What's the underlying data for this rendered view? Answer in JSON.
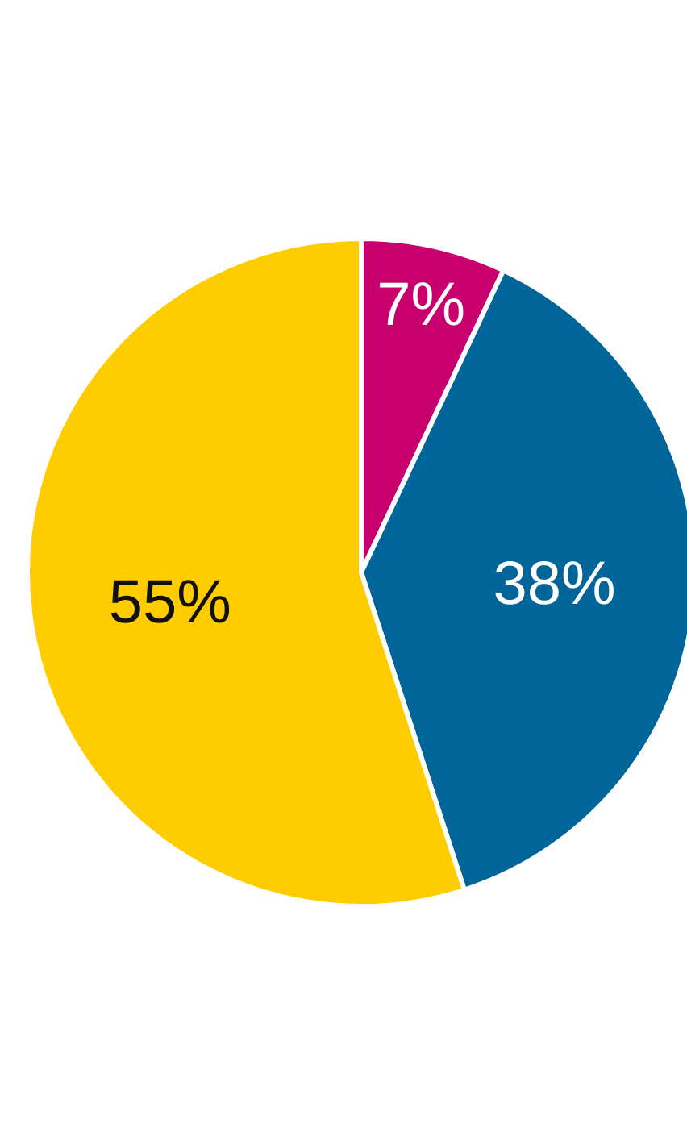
{
  "chart_data": {
    "type": "pie",
    "categories": [
      null,
      null,
      null
    ],
    "values": [
      7,
      38,
      55
    ],
    "colors": [
      "#c8006e",
      "#006699",
      "#ffcc00"
    ],
    "value_labels": [
      "7%",
      "38%",
      "55%"
    ]
  }
}
